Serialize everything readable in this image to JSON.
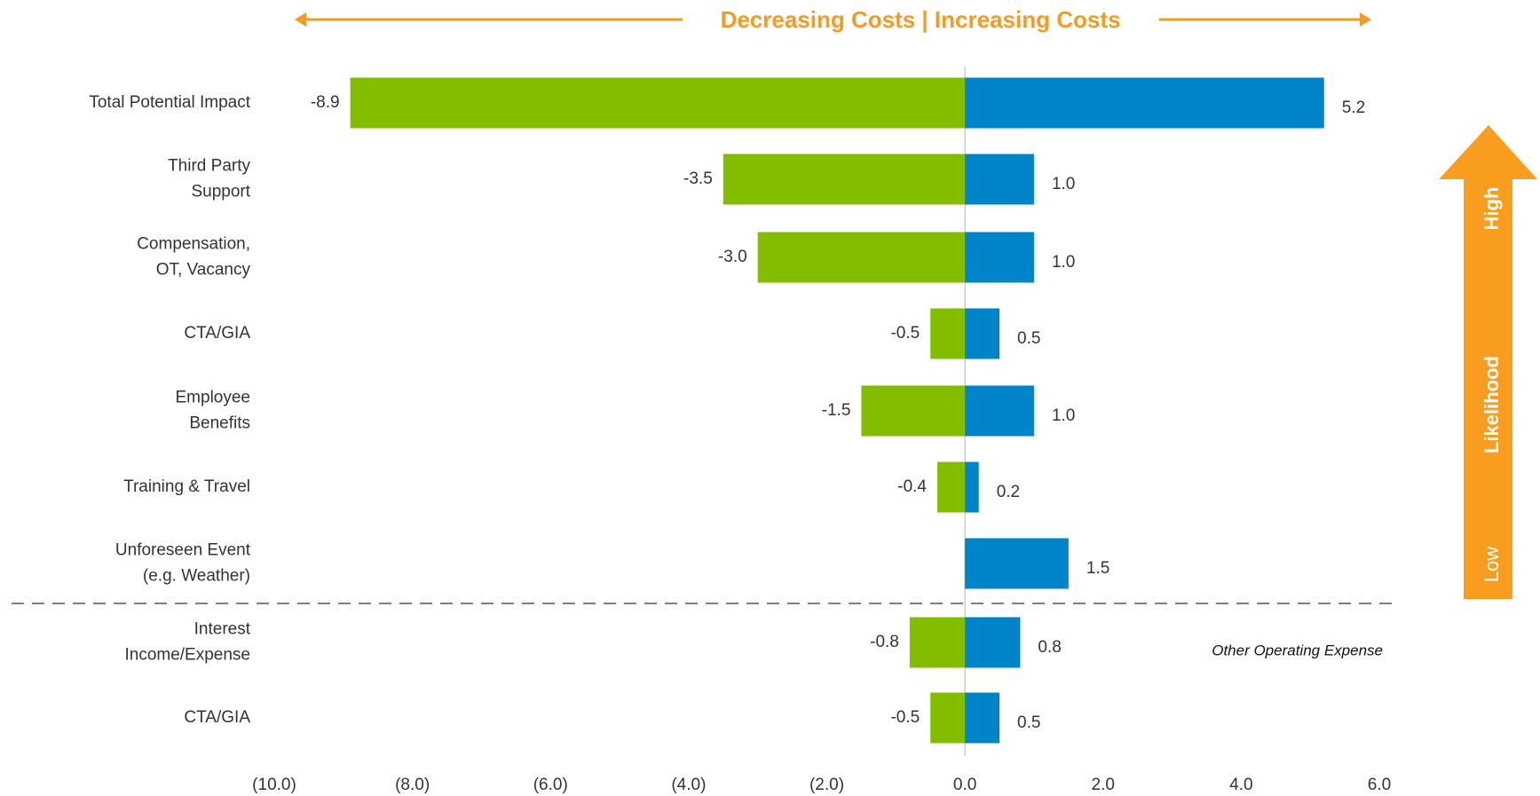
{
  "chart_data": {
    "type": "tornado",
    "title": "Decreasing Costs | Increasing Costs",
    "categories": [
      [
        "Total Potential Impact"
      ],
      [
        "Third Party",
        "Support"
      ],
      [
        "Compensation,",
        "OT, Vacancy"
      ],
      [
        "CTA/GIA"
      ],
      [
        "Employee",
        "Benefits"
      ],
      [
        "Training & Travel"
      ],
      [
        "Unforeseen Event",
        "(e.g. Weather)"
      ],
      [
        "Interest",
        "Income/Expense"
      ],
      [
        "CTA/GIA"
      ]
    ],
    "series": [
      {
        "color": "#84bd00",
        "values": [
          -8.9,
          -3.5,
          -3.0,
          -0.5,
          -1.5,
          -0.4,
          null,
          -0.8,
          -0.5
        ],
        "value_labels": [
          "-8.9",
          "-3.5",
          "-3.0",
          "-0.5",
          "-1.5",
          "-0.4",
          null,
          "-0.8",
          "-0.5"
        ]
      },
      {
        "color": "#0084c9",
        "values": [
          5.2,
          1.0,
          1.0,
          0.5,
          1.0,
          0.2,
          1.5,
          0.8,
          0.5
        ],
        "value_labels": [
          "5.2",
          "1.0",
          "1.0",
          "0.5",
          "1.0",
          "0.2",
          "1.5",
          "0.8",
          "0.5"
        ]
      }
    ],
    "xlim": [
      -10,
      6
    ],
    "xticks": [
      {
        "value": -10,
        "label": "(10.0)"
      },
      {
        "value": -8,
        "label": "(8.0)"
      },
      {
        "value": -6,
        "label": "(6.0)"
      },
      {
        "value": -4,
        "label": "(4.0)"
      },
      {
        "value": -2,
        "label": "(2.0)"
      },
      {
        "value": 0,
        "label": "0.0"
      },
      {
        "value": 2,
        "label": "2.0"
      },
      {
        "value": 4,
        "label": "4.0"
      },
      {
        "value": 6,
        "label": "6.0"
      }
    ],
    "annotations": {
      "section": "Other Operating Expense",
      "likelihood": "Likelihood",
      "high": "High",
      "low": "Low"
    }
  }
}
